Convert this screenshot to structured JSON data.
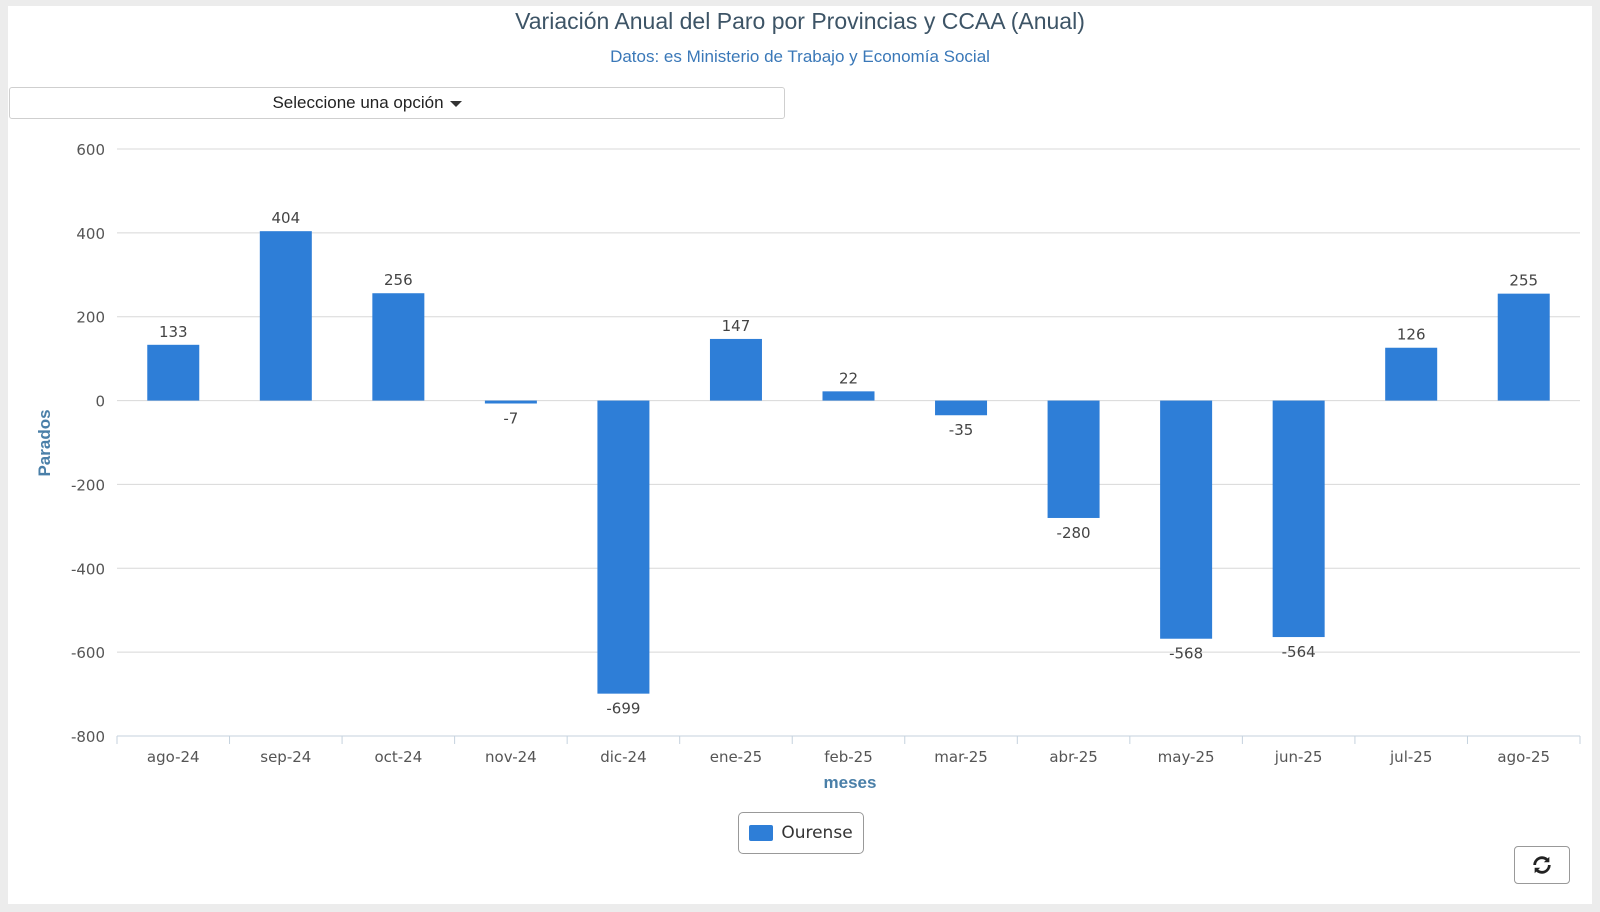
{
  "header": {
    "title": "Variación Anual del Paro por Provincias y CCAA (Anual)",
    "subtitle": "Datos: es Ministerio de Trabajo y Economía Social"
  },
  "selector": {
    "label": "Seleccione una opción"
  },
  "legend": {
    "label": "Ourense"
  },
  "colors": {
    "bar": "#2e7ed7",
    "axis_title": "#4a7fa8",
    "grid": "#d8d8d8",
    "tick": "#555555"
  },
  "icons": {
    "refresh": "refresh-icon",
    "caret": "caret-down-icon"
  },
  "chart_data": {
    "type": "bar",
    "title": "Variación Anual del Paro por Provincias y CCAA (Anual)",
    "subtitle": "Datos: es Ministerio de Trabajo y Economía Social",
    "xlabel": "meses",
    "ylabel": "Parados",
    "categories": [
      "ago-24",
      "sep-24",
      "oct-24",
      "nov-24",
      "dic-24",
      "ene-25",
      "feb-25",
      "mar-25",
      "abr-25",
      "may-25",
      "jun-25",
      "jul-25",
      "ago-25"
    ],
    "series": [
      {
        "name": "Ourense",
        "values": [
          133,
          404,
          256,
          -7,
          -699,
          147,
          22,
          -35,
          -280,
          -568,
          -564,
          126,
          255
        ]
      }
    ],
    "ylim": [
      -800,
      600
    ],
    "yticks": [
      600,
      400,
      200,
      0,
      -200,
      -400,
      -600,
      -800
    ],
    "grid": true,
    "legend_position": "bottom-center"
  }
}
